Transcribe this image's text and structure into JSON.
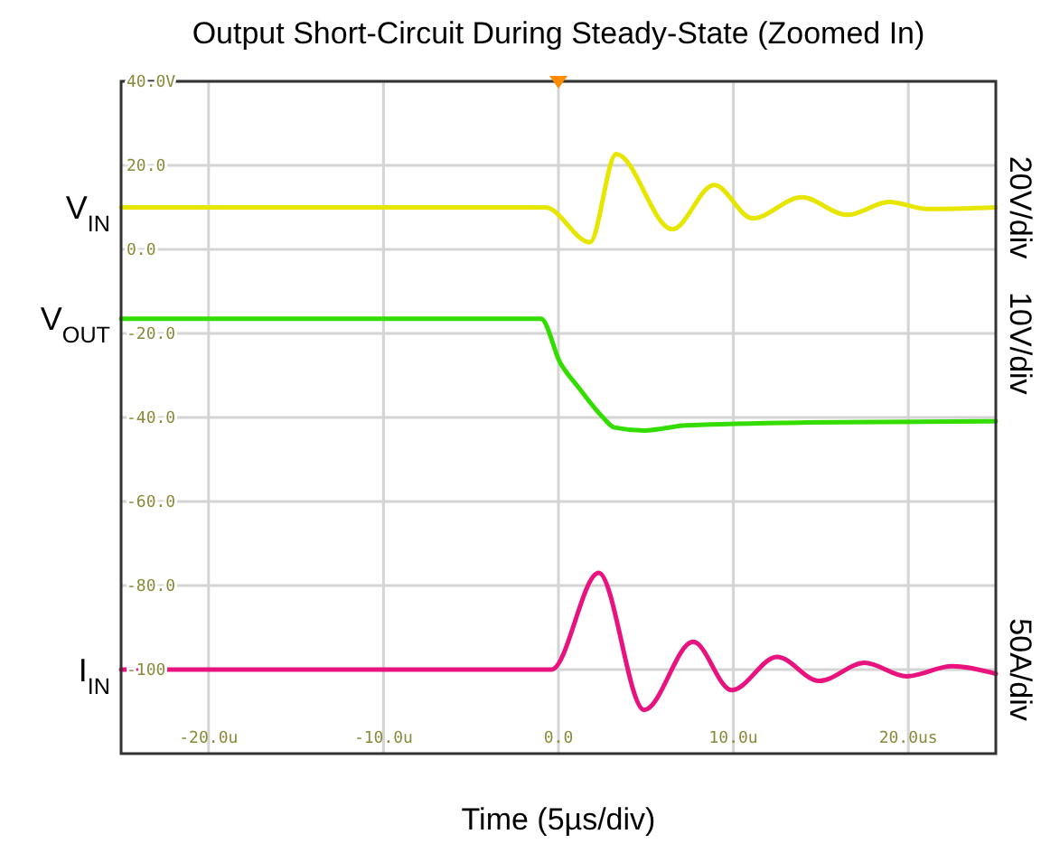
{
  "chart_data": {
    "type": "line",
    "title": "Output Short-Circuit During Steady-State (Zoomed In)",
    "xlabel": "Time (5µs/div)",
    "xlim": [
      -25,
      25
    ],
    "ylim": [
      -120,
      40
    ],
    "xticks": [
      {
        "value": -20,
        "label": "-20.0u"
      },
      {
        "value": -10,
        "label": "-10.0u"
      },
      {
        "value": 0,
        "label": "0.0"
      },
      {
        "value": 10,
        "label": "10.0u"
      },
      {
        "value": 20,
        "label": "20.0us"
      }
    ],
    "yticks": [
      {
        "value": 40,
        "label": "40.0V"
      },
      {
        "value": 20,
        "label": "20.0"
      },
      {
        "value": 0,
        "label": "0.0"
      },
      {
        "value": -20,
        "label": "-20.0"
      },
      {
        "value": -40,
        "label": "-40.0"
      },
      {
        "value": -60,
        "label": "-60.0"
      },
      {
        "value": -80,
        "label": "-80.0"
      },
      {
        "value": -100,
        "label": "-100"
      }
    ],
    "grid": true,
    "annotations": [
      "20V/div",
      "10V/div",
      "50A/div"
    ],
    "series": [
      {
        "name": "V$_{IN}$",
        "color": "#e6e600",
        "x": [
          -25,
          -0.75,
          1.8,
          3.3,
          6.5,
          8.9,
          11.1,
          13.9,
          16.5,
          18.9,
          21.1,
          25
        ],
        "values": [
          10,
          10,
          1.7,
          22.7,
          4.8,
          15.3,
          7.4,
          12.4,
          8.2,
          11.3,
          9.6,
          10
        ]
      },
      {
        "name": "V$_{OUT}$",
        "color": "#33dd00",
        "x": [
          -25,
          -1.0,
          0.1,
          1.1,
          2.5,
          3.2,
          4.9,
          7.3,
          14.2,
          25
        ],
        "values": [
          -16.5,
          -16.5,
          -27,
          -32.6,
          -39.8,
          -42.4,
          -43.1,
          -41.9,
          -41.2,
          -40.9
        ]
      },
      {
        "name": "I$_{IN}$",
        "color": "#e8137e",
        "x": [
          -25,
          -0.4,
          2.3,
          4.9,
          7.7,
          9.9,
          12.5,
          14.9,
          17.5,
          19.9,
          22.5,
          25
        ],
        "values": [
          -100,
          -100,
          -77,
          -109.6,
          -93.4,
          -104.9,
          -97,
          -102.7,
          -98.4,
          -101.6,
          -99.2,
          -101
        ]
      }
    ]
  }
}
